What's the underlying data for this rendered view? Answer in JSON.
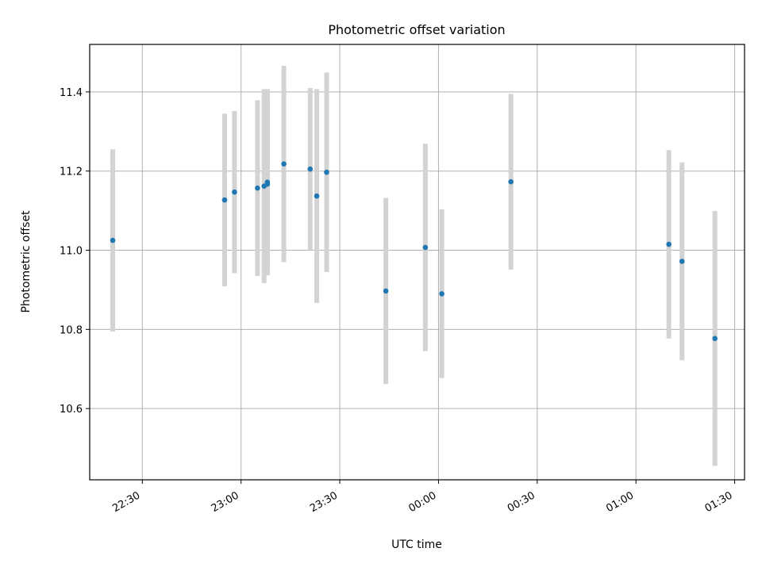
{
  "chart_data": {
    "type": "scatter",
    "title": "Photometric offset variation",
    "xlabel": "UTC time",
    "ylabel": "Photometric offset",
    "grid": true,
    "x_unit": "UTC time (hh:mm)",
    "xlim": [
      "22:14",
      "01:33"
    ],
    "ylim": [
      10.42,
      11.52
    ],
    "x_ticks": [
      "22:30",
      "23:00",
      "23:30",
      "00:00",
      "00:30",
      "01:00",
      "01:30"
    ],
    "y_ticks": [
      10.6,
      10.8,
      11.0,
      11.2,
      11.4
    ],
    "marker_color": "#1f77b4",
    "errorbar_color": "#d3d3d3",
    "points": [
      {
        "x": "22:21",
        "y": 11.025,
        "err": 0.23
      },
      {
        "x": "22:55",
        "y": 11.127,
        "err": 0.218
      },
      {
        "x": "22:58",
        "y": 11.147,
        "err": 0.205
      },
      {
        "x": "23:05",
        "y": 11.157,
        "err": 0.222
      },
      {
        "x": "23:07",
        "y": 11.162,
        "err": 0.245
      },
      {
        "x": "23:08",
        "y": 11.172,
        "err": 0.235
      },
      {
        "x": "23:08",
        "y": 11.167,
        "err": 0.222
      },
      {
        "x": "23:13",
        "y": 11.218,
        "err": 0.248
      },
      {
        "x": "23:21",
        "y": 11.205,
        "err": 0.205
      },
      {
        "x": "23:23",
        "y": 11.137,
        "err": 0.27
      },
      {
        "x": "23:26",
        "y": 11.197,
        "err": 0.252
      },
      {
        "x": "23:44",
        "y": 10.897,
        "err": 0.235
      },
      {
        "x": "23:56",
        "y": 11.007,
        "err": 0.262
      },
      {
        "x": "00:01",
        "y": 10.89,
        "err": 0.213
      },
      {
        "x": "00:22",
        "y": 11.173,
        "err": 0.222
      },
      {
        "x": "01:10",
        "y": 11.015,
        "err": 0.238
      },
      {
        "x": "01:14",
        "y": 10.972,
        "err": 0.25
      },
      {
        "x": "01:24",
        "y": 10.777,
        "err": 0.322
      }
    ]
  }
}
